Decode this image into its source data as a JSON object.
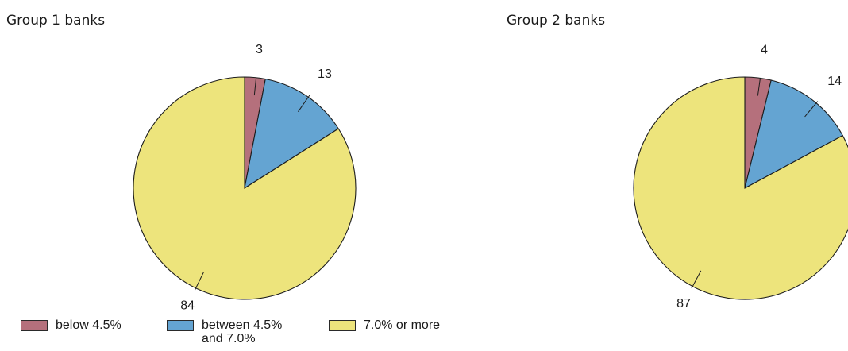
{
  "chart_data": [
    {
      "type": "pie",
      "title": "Group 1 banks",
      "categories": [
        "below 4.5%",
        "between 4.5% and 7.0%",
        "7.0% or more"
      ],
      "values": [
        3,
        13,
        84
      ],
      "data_labels": [
        "3",
        "13",
        "84"
      ],
      "start_angle_deg": 0,
      "direction": "clockwise"
    },
    {
      "type": "pie",
      "title": "Group 2 banks",
      "categories": [
        "below 4.5%",
        "between 4.5% and 7.0%",
        "7.0% or more"
      ],
      "values": [
        4,
        14,
        87
      ],
      "data_labels": [
        "4",
        "14",
        "87"
      ],
      "start_angle_deg": 0,
      "direction": "clockwise"
    }
  ],
  "legend": {
    "placement": "bottom-left",
    "items": [
      {
        "label": "below 4.5%",
        "color": "#b5707c"
      },
      {
        "label": "between 4.5%\nand 7.0%",
        "color": "#64a4d2"
      },
      {
        "label": "7.0% or more",
        "color": "#ede47c"
      }
    ]
  },
  "colors": [
    "#b5707c",
    "#64a4d2",
    "#ede47c"
  ]
}
